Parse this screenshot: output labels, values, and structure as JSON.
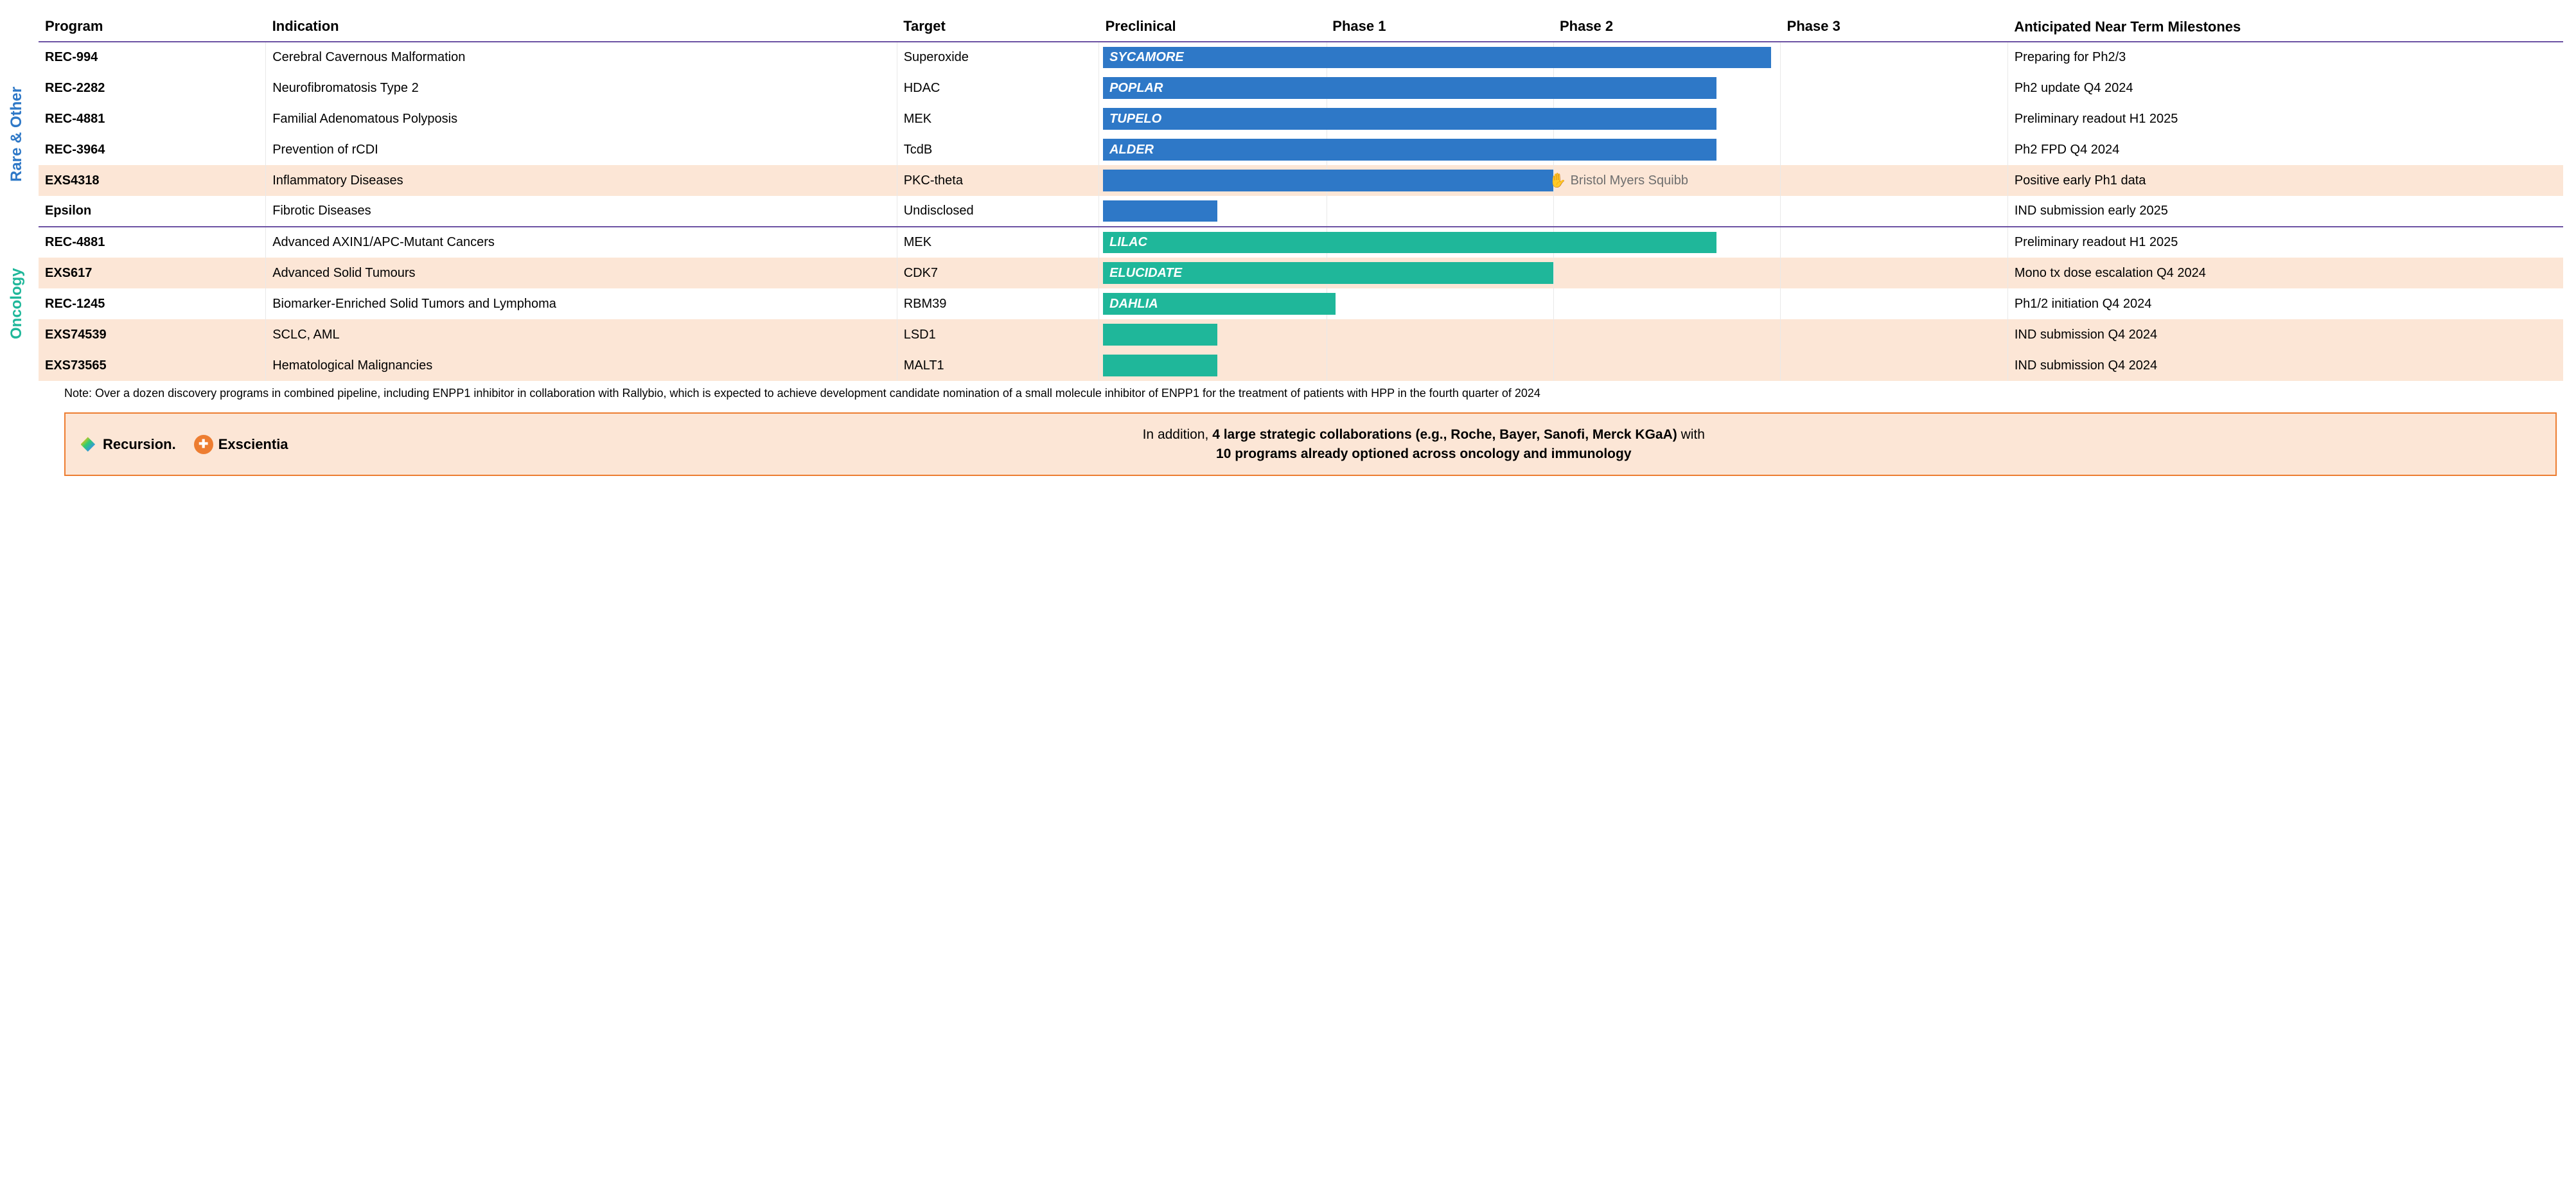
{
  "columns": {
    "program": "Program",
    "indication": "Indication",
    "target": "Target",
    "preclinical": "Preclinical",
    "phase1": "Phase 1",
    "phase2": "Phase 2",
    "phase3": "Phase 3",
    "milestone": "Anticipated Near Term Milestones"
  },
  "categories": [
    {
      "key": "rare",
      "label": "Rare & Other",
      "color": "#2e78c7",
      "row_start": 0,
      "row_end": 5
    },
    {
      "key": "onc",
      "label": "Oncology",
      "color": "#1fb79a",
      "row_start": 6,
      "row_end": 10
    }
  ],
  "bar_colors": {
    "rare": "#2e78c7",
    "onc": "#1fb79a"
  },
  "phase_span_pct": {
    "preclinical": 25,
    "phase1": 25,
    "phase2": 25,
    "phase3": 25
  },
  "rows": [
    {
      "cat": "rare",
      "program": "REC-994",
      "indication": "Cerebral Cavernous Malformation",
      "target": "Superoxide",
      "bar_label": "SYCAMORE",
      "bar_end_pct": 74,
      "milestone": "Preparing for Ph2/3",
      "hl": false
    },
    {
      "cat": "rare",
      "program": "REC-2282",
      "indication": "Neurofibromatosis Type 2",
      "target": "HDAC",
      "bar_label": "POPLAR",
      "bar_end_pct": 68,
      "milestone": "Ph2 update Q4 2024",
      "hl": false
    },
    {
      "cat": "rare",
      "program": "REC-4881",
      "indication": "Familial Adenomatous Polyposis",
      "target": "MEK",
      "bar_label": "TUPELO",
      "bar_end_pct": 68,
      "milestone": "Preliminary readout H1 2025",
      "hl": false
    },
    {
      "cat": "rare",
      "program": "REC-3964",
      "indication": "Prevention of rCDI",
      "target": "TcdB",
      "bar_label": "ALDER",
      "bar_end_pct": 68,
      "milestone": "Ph2 FPD Q4 2024",
      "hl": false
    },
    {
      "cat": "rare",
      "program": "EXS4318",
      "indication": "Inflammatory Diseases",
      "target": "PKC-theta",
      "bar_label": "",
      "bar_end_pct": 50,
      "milestone": "Positive early Ph1 data",
      "hl": true,
      "partner": "Bristol Myers Squibb"
    },
    {
      "cat": "rare",
      "program": "Epsilon",
      "indication": "Fibrotic Diseases",
      "target": "Undisclosed",
      "bar_label": "",
      "bar_end_pct": 13,
      "milestone": "IND submission early 2025",
      "hl": false
    },
    {
      "cat": "onc",
      "program": "REC-4881",
      "indication": "Advanced AXIN1/APC-Mutant Cancers",
      "target": "MEK",
      "bar_label": "LILAC",
      "bar_end_pct": 68,
      "milestone": "Preliminary readout H1 2025",
      "hl": false
    },
    {
      "cat": "onc",
      "program": "EXS617",
      "indication": "Advanced Solid Tumours",
      "target": "CDK7",
      "bar_label": "ELUCIDATE",
      "bar_end_pct": 50,
      "milestone": "Mono tx dose escalation Q4 2024",
      "hl": true
    },
    {
      "cat": "onc",
      "program": "REC-1245",
      "indication": "Biomarker-Enriched Solid Tumors and Lymphoma",
      "target": "RBM39",
      "bar_label": "DAHLIA",
      "bar_end_pct": 26,
      "milestone": "Ph1/2 initiation Q4 2024",
      "hl": false
    },
    {
      "cat": "onc",
      "program": "EXS74539",
      "indication": "SCLC, AML",
      "target": "LSD1",
      "bar_label": "",
      "bar_end_pct": 13,
      "milestone": "IND submission Q4 2024",
      "hl": true
    },
    {
      "cat": "onc",
      "program": "EXS73565",
      "indication": "Hematological Malignancies",
      "target": "MALT1",
      "bar_label": "",
      "bar_end_pct": 13,
      "milestone": "IND submission Q4 2024",
      "hl": true
    }
  ],
  "note": "Note: Over a dozen discovery programs in combined pipeline, including ENPP1 inhibitor in collaboration with Rallybio, which is expected to achieve development candidate nomination of a small molecule inhibitor of ENPP1 for the treatment of patients with HPP in the fourth quarter of 2024",
  "footer": {
    "logo1": "Recursion.",
    "logo2": "Exscientia",
    "text_pre": "In addition, ",
    "text_bold1": "4 large strategic collaborations (e.g., Roche, Bayer, Sanofi, Merck KGaA)",
    "text_mid": " with",
    "text_bold2": "10 programs already optioned across oncology and immunology"
  },
  "styling": {
    "header_border_color": "#6b51a3",
    "highlight_bg": "#fce6d6",
    "grid_color": "#e9e9e9",
    "footer_border_color": "#ed7d31",
    "font_family": "Segoe UI, Arial, sans-serif"
  }
}
